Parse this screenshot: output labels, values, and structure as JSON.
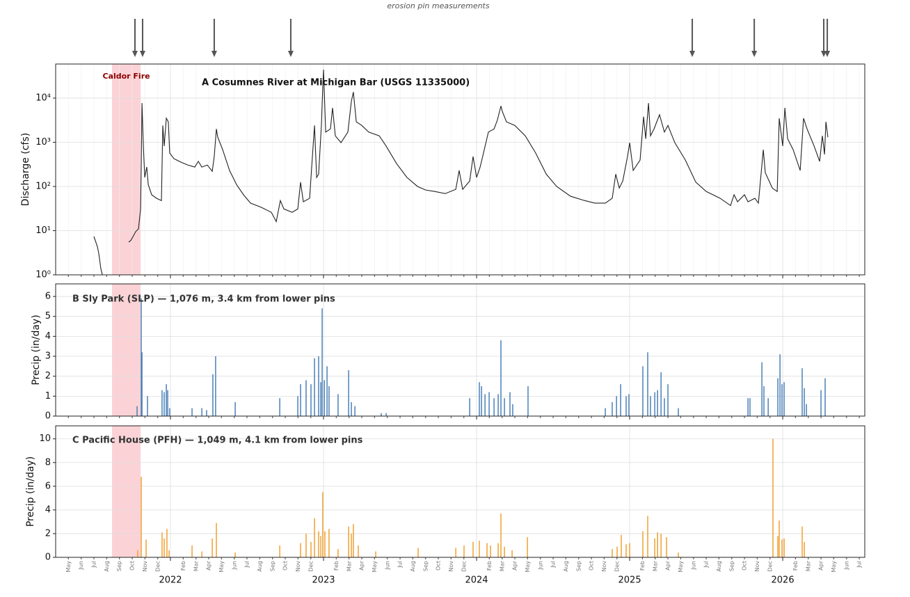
{
  "chart_data": [
    {
      "type": "line",
      "title": "A  Cosumnes River at Michigan Bar (USGS 11335000)",
      "y_label": "Discharge (cfs)",
      "log_y": true,
      "grid": true,
      "color": "#222222",
      "ylim": [
        1,
        59000
      ],
      "yticks": [
        {
          "value": 1,
          "label": "10⁰"
        },
        {
          "value": 10,
          "label": "10¹"
        },
        {
          "value": 100,
          "label": "10²"
        },
        {
          "value": 1000,
          "label": "10³"
        },
        {
          "value": 10000,
          "label": "10⁴"
        }
      ],
      "xlim": [
        2021.25,
        2026.536
      ],
      "shaded_span": {
        "label": "Caldor Fire",
        "x": [
          2021.618,
          2021.805
        ],
        "color": "#fbd3d6"
      },
      "markers": {
        "label": "erosion pin measurements",
        "x": [
          2021.768,
          2021.818,
          2022.286,
          2022.786,
          2025.409,
          2025.814,
          2026.268,
          2026.291
        ]
      },
      "x": [
        2021.5,
        2021.523,
        2021.532,
        2021.545,
        2021.555,
        2021.65,
        2021.727,
        2021.741,
        2021.773,
        2021.791,
        2021.805,
        2021.809,
        2021.814,
        2021.823,
        2021.832,
        2021.845,
        2021.855,
        2021.877,
        2021.909,
        2021.941,
        2021.95,
        2021.959,
        2021.973,
        2021.986,
        2021.995,
        2022.023,
        2022.068,
        2022.114,
        2022.159,
        2022.182,
        2022.205,
        2022.241,
        2022.273,
        2022.286,
        2022.3,
        2022.309,
        2022.341,
        2022.386,
        2022.432,
        2022.477,
        2022.523,
        2022.591,
        2022.659,
        2022.691,
        2022.718,
        2022.741,
        2022.795,
        2022.832,
        2022.85,
        2022.868,
        2022.909,
        2022.941,
        2022.955,
        2022.968,
        2022.986,
        2022.995,
        2023.0,
        2023.014,
        2023.045,
        2023.059,
        2023.077,
        2023.114,
        2023.159,
        2023.182,
        2023.195,
        2023.214,
        2023.25,
        2023.295,
        2023.364,
        2023.409,
        2023.477,
        2023.545,
        2023.614,
        2023.668,
        2023.727,
        2023.795,
        2023.864,
        2023.886,
        2023.909,
        2023.955,
        2023.977,
        2024.0,
        2024.023,
        2024.045,
        2024.077,
        2024.114,
        2024.136,
        2024.159,
        2024.168,
        2024.195,
        2024.25,
        2024.318,
        2024.386,
        2024.455,
        2024.523,
        2024.614,
        2024.705,
        2024.773,
        2024.841,
        2024.886,
        2024.909,
        2024.932,
        2024.955,
        2024.986,
        2025.0,
        2025.023,
        2025.068,
        2025.091,
        2025.105,
        2025.123,
        2025.136,
        2025.159,
        2025.195,
        2025.227,
        2025.25,
        2025.295,
        2025.364,
        2025.432,
        2025.5,
        2025.591,
        2025.659,
        2025.682,
        2025.705,
        2025.75,
        2025.773,
        2025.818,
        2025.841,
        2025.873,
        2025.886,
        2025.932,
        2025.964,
        2025.977,
        2026.0,
        2026.014,
        2026.032,
        2026.068,
        2026.114,
        2026.136,
        2026.159,
        2026.205,
        2026.241,
        2026.259,
        2026.273,
        2026.282,
        2026.295
      ],
      "values": [
        7.4,
        4.3,
        3,
        1.4,
        1,
        null,
        5.5,
        6,
        9.5,
        11,
        31,
        275,
        7700,
        820,
        160,
        275,
        110,
        65,
        54,
        48,
        2400,
        820,
        3500,
        2900,
        570,
        425,
        355,
        305,
        275,
        370,
        275,
        305,
        220,
        475,
        2000,
        1300,
        680,
        230,
        110,
        65,
        42,
        34,
        26,
        16,
        48,
        31,
        26,
        31,
        125,
        45,
        54,
        2400,
        160,
        190,
        2400,
        17600,
        44000,
        1700,
        2000,
        6000,
        1400,
        980,
        1700,
        8500,
        13700,
        2900,
        2400,
        1700,
        1400,
        820,
        330,
        160,
        100,
        83,
        77,
        69,
        86,
        230,
        86,
        133,
        475,
        160,
        275,
        570,
        1700,
        2000,
        3200,
        6600,
        5000,
        2900,
        2400,
        1400,
        570,
        190,
        100,
        60,
        48,
        42,
        42,
        54,
        190,
        92,
        133,
        475,
        980,
        230,
        395,
        3800,
        1200,
        7700,
        1400,
        2000,
        4200,
        1700,
        2400,
        980,
        395,
        125,
        77,
        54,
        37,
        65,
        45,
        65,
        45,
        54,
        42,
        680,
        205,
        92,
        77,
        3500,
        820,
        6000,
        1200,
        680,
        230,
        3500,
        2000,
        820,
        370,
        1400,
        530,
        2900,
        1300
      ]
    },
    {
      "type": "bar",
      "title": "B  Sly Park (SLP) — 1,076 m, 3.4 km from lower pins",
      "y_label": "Precip (in/day)",
      "grid": true,
      "color": "#4a80b8",
      "ylim": [
        0,
        6.63
      ],
      "yticks": [
        0,
        1,
        2,
        3,
        4,
        5,
        6
      ],
      "xlim": [
        2021.25,
        2026.536
      ],
      "x": [
        2021.782,
        2021.809,
        2021.814,
        2021.85,
        2021.945,
        2021.959,
        2021.973,
        2021.982,
        2021.995,
        2022.141,
        2022.205,
        2022.236,
        2022.277,
        2022.295,
        2022.423,
        2022.714,
        2022.832,
        2022.85,
        2022.886,
        2022.918,
        2022.941,
        2022.968,
        2022.982,
        2022.991,
        2023.005,
        2023.023,
        2023.036,
        2023.095,
        2023.164,
        2023.182,
        2023.205,
        2023.377,
        2023.409,
        2023.955,
        2024.018,
        2024.032,
        2024.055,
        2024.082,
        2024.114,
        2024.141,
        2024.159,
        2024.182,
        2024.218,
        2024.236,
        2024.336,
        2024.841,
        2024.886,
        2024.914,
        2024.941,
        2024.977,
        2024.995,
        2025.086,
        2025.118,
        2025.136,
        2025.164,
        2025.182,
        2025.205,
        2025.227,
        2025.25,
        2025.318,
        2025.773,
        2025.786,
        2025.864,
        2025.877,
        2025.905,
        2025.968,
        2025.982,
        2025.995,
        2026.009,
        2026.127,
        2026.141,
        2026.155,
        2026.25,
        2026.277
      ],
      "values": [
        0.5,
        5.9,
        3.2,
        1.0,
        1.3,
        1.2,
        1.6,
        1.3,
        0.4,
        0.4,
        0.4,
        0.3,
        2.1,
        3.0,
        0.7,
        0.9,
        1.0,
        1.6,
        1.8,
        1.6,
        2.9,
        3.0,
        1.7,
        5.4,
        1.8,
        2.5,
        1.5,
        1.1,
        2.3,
        0.7,
        0.5,
        0.15,
        0.15,
        0.9,
        1.7,
        1.5,
        1.1,
        1.2,
        0.9,
        1.1,
        3.8,
        0.9,
        1.2,
        0.6,
        1.5,
        0.4,
        0.7,
        1.0,
        1.6,
        1.0,
        1.1,
        2.5,
        3.2,
        1.0,
        1.2,
        1.3,
        2.2,
        0.9,
        1.6,
        0.4,
        0.9,
        0.9,
        2.7,
        1.5,
        0.9,
        1.9,
        3.1,
        1.6,
        1.7,
        2.4,
        1.4,
        0.6,
        1.3,
        1.9
      ]
    },
    {
      "type": "bar",
      "title": "C  Pacific House (PFH) — 1,049 m, 4.1 km from lower pins",
      "y_label": "Precip (in/day)",
      "grid": true,
      "color": "#f0a030",
      "ylim": [
        0,
        11.1
      ],
      "yticks": [
        0,
        2,
        4,
        6,
        8,
        10
      ],
      "xlim": [
        2021.25,
        2026.536
      ],
      "x": [
        2021.786,
        2021.809,
        2021.841,
        2021.945,
        2021.959,
        2021.977,
        2021.991,
        2022.141,
        2022.205,
        2022.273,
        2022.3,
        2022.423,
        2022.714,
        2022.85,
        2022.886,
        2022.918,
        2022.941,
        2022.968,
        2022.982,
        2022.995,
        2023.009,
        2023.036,
        2023.095,
        2023.164,
        2023.182,
        2023.195,
        2023.227,
        2023.341,
        2023.618,
        2023.864,
        2023.918,
        2023.977,
        2024.018,
        2024.068,
        2024.091,
        2024.141,
        2024.159,
        2024.182,
        2024.232,
        2024.332,
        2024.886,
        2024.918,
        2024.945,
        2024.977,
        2025.0,
        2025.086,
        2025.118,
        2025.164,
        2025.182,
        2025.205,
        2025.241,
        2025.318,
        2025.936,
        2025.968,
        2025.977,
        2025.995,
        2026.009,
        2026.127,
        2026.141
      ],
      "values": [
        0.6,
        6.8,
        1.5,
        2.1,
        1.6,
        2.4,
        0.6,
        1.0,
        0.5,
        1.6,
        2.9,
        0.4,
        1.0,
        1.2,
        2.0,
        1.3,
        3.3,
        2.2,
        1.8,
        5.5,
        2.2,
        2.4,
        0.7,
        2.6,
        2.0,
        2.8,
        1.0,
        0.5,
        0.8,
        0.8,
        1.0,
        1.3,
        1.4,
        1.2,
        1.0,
        1.2,
        3.7,
        0.9,
        0.6,
        1.7,
        0.7,
        0.9,
        1.9,
        1.1,
        1.2,
        2.2,
        3.5,
        1.6,
        2.1,
        2.0,
        1.7,
        0.4,
        10.0,
        1.8,
        3.1,
        1.5,
        1.6,
        2.6,
        1.3
      ],
      "xticks": [
        {
          "value": 2021.333,
          "label": "May"
        },
        {
          "value": 2021.417,
          "label": "Jun"
        },
        {
          "value": 2021.5,
          "label": "Jul"
        },
        {
          "value": 2021.583,
          "label": "Aug"
        },
        {
          "value": 2021.667,
          "label": "Sep"
        },
        {
          "value": 2021.75,
          "label": "Oct"
        },
        {
          "value": 2021.833,
          "label": "Nov"
        },
        {
          "value": 2021.917,
          "label": "Dec"
        },
        {
          "value": 2022.083,
          "label": "Feb"
        },
        {
          "value": 2022.167,
          "label": "Mar"
        },
        {
          "value": 2022.25,
          "label": "Apr"
        },
        {
          "value": 2022.333,
          "label": "May"
        },
        {
          "value": 2022.417,
          "label": "Jun"
        },
        {
          "value": 2022.5,
          "label": "Jul"
        },
        {
          "value": 2022.583,
          "label": "Aug"
        },
        {
          "value": 2022.667,
          "label": "Sep"
        },
        {
          "value": 2022.75,
          "label": "Oct"
        },
        {
          "value": 2022.833,
          "label": "Nov"
        },
        {
          "value": 2022.917,
          "label": "Dec"
        },
        {
          "value": 2023.083,
          "label": "Feb"
        },
        {
          "value": 2023.167,
          "label": "Mar"
        },
        {
          "value": 2023.25,
          "label": "Apr"
        },
        {
          "value": 2023.333,
          "label": "May"
        },
        {
          "value": 2023.417,
          "label": "Jun"
        },
        {
          "value": 2023.5,
          "label": "Jul"
        },
        {
          "value": 2023.583,
          "label": "Aug"
        },
        {
          "value": 2023.667,
          "label": "Sep"
        },
        {
          "value": 2023.75,
          "label": "Oct"
        },
        {
          "value": 2023.833,
          "label": "Nov"
        },
        {
          "value": 2023.917,
          "label": "Dec"
        },
        {
          "value": 2024.083,
          "label": "Feb"
        },
        {
          "value": 2024.167,
          "label": "Mar"
        },
        {
          "value": 2024.25,
          "label": "Apr"
        },
        {
          "value": 2024.333,
          "label": "May"
        },
        {
          "value": 2024.417,
          "label": "Jun"
        },
        {
          "value": 2024.5,
          "label": "Jul"
        },
        {
          "value": 2024.583,
          "label": "Aug"
        },
        {
          "value": 2024.667,
          "label": "Sep"
        },
        {
          "value": 2024.75,
          "label": "Oct"
        },
        {
          "value": 2024.833,
          "label": "Nov"
        },
        {
          "value": 2024.917,
          "label": "Dec"
        },
        {
          "value": 2025.083,
          "label": "Feb"
        },
        {
          "value": 2025.167,
          "label": "Mar"
        },
        {
          "value": 2025.25,
          "label": "Apr"
        },
        {
          "value": 2025.333,
          "label": "May"
        },
        {
          "value": 2025.417,
          "label": "Jun"
        },
        {
          "value": 2025.5,
          "label": "Jul"
        },
        {
          "value": 2025.583,
          "label": "Aug"
        },
        {
          "value": 2025.667,
          "label": "Sep"
        },
        {
          "value": 2025.75,
          "label": "Oct"
        },
        {
          "value": 2025.833,
          "label": "Nov"
        },
        {
          "value": 2025.917,
          "label": "Dec"
        },
        {
          "value": 2026.083,
          "label": "Feb"
        },
        {
          "value": 2026.167,
          "label": "Mar"
        },
        {
          "value": 2026.25,
          "label": "Apr"
        },
        {
          "value": 2026.333,
          "label": "May"
        },
        {
          "value": 2026.417,
          "label": "Jun"
        },
        {
          "value": 2026.5,
          "label": "Jul"
        }
      ],
      "xticks_major": [
        2022,
        2023,
        2024,
        2025,
        2026
      ]
    }
  ]
}
